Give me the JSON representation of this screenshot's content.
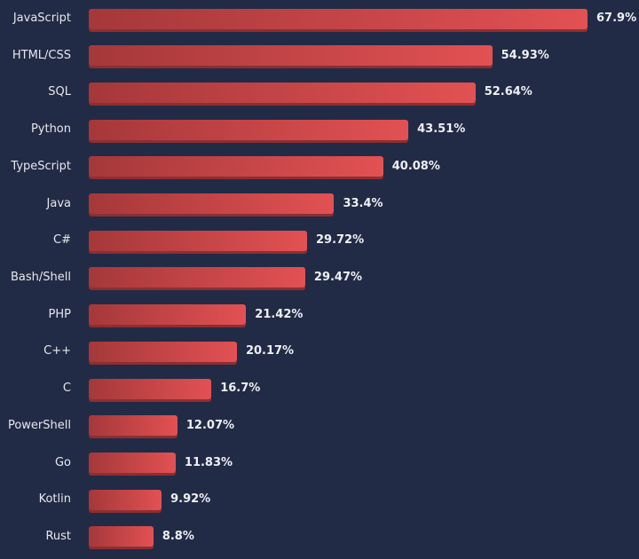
{
  "chart_data": {
    "type": "bar",
    "orientation": "horizontal",
    "categories": [
      "JavaScript",
      "HTML/CSS",
      "SQL",
      "Python",
      "TypeScript",
      "Java",
      "C#",
      "Bash/Shell",
      "PHP",
      "C++",
      "C",
      "PowerShell",
      "Go",
      "Kotlin",
      "Rust"
    ],
    "values": [
      67.9,
      54.93,
      52.64,
      43.51,
      40.08,
      33.4,
      29.72,
      29.47,
      21.42,
      20.17,
      16.7,
      12.07,
      11.83,
      9.92,
      8.8
    ],
    "value_labels": [
      "67.9%",
      "54.93%",
      "52.64%",
      "43.51%",
      "40.08%",
      "33.4%",
      "29.72%",
      "29.47%",
      "21.42%",
      "20.17%",
      "16.7%",
      "12.07%",
      "11.83%",
      "9.92%",
      "8.8%"
    ],
    "unit": "%",
    "grid": false,
    "colors": {
      "background": "#222b45",
      "bar_start": "#a5383a",
      "bar_end": "#e25153",
      "text": "#e6e8ef"
    }
  }
}
